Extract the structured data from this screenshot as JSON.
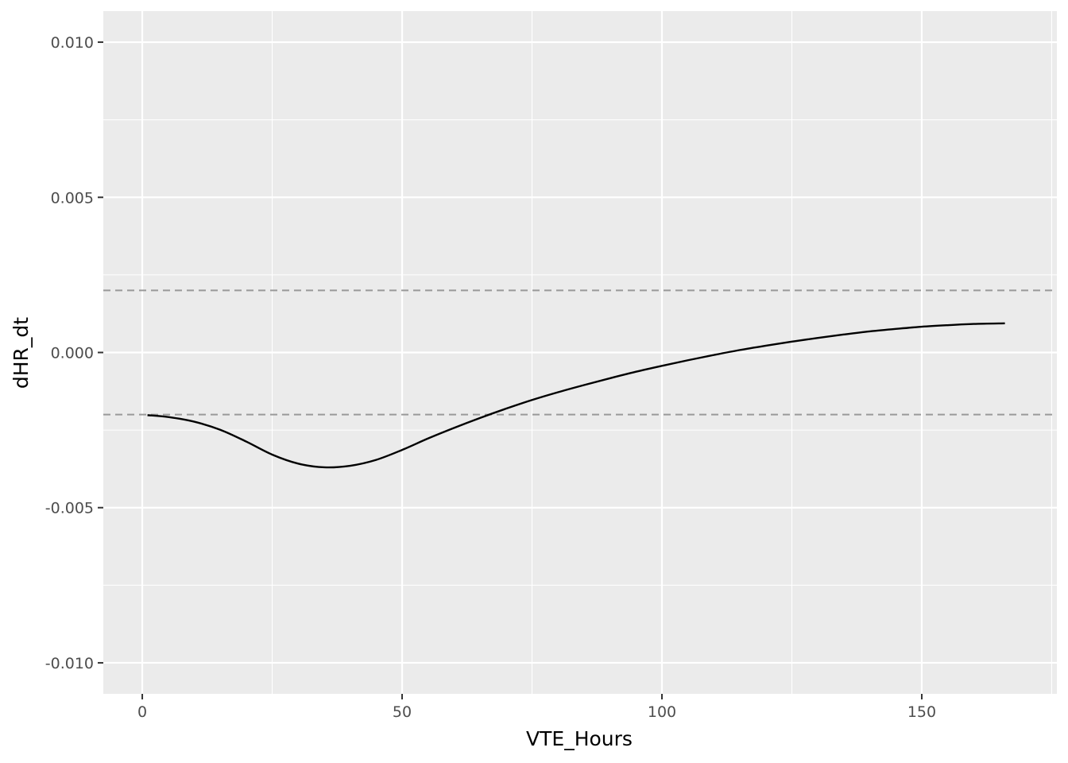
{
  "chart_data": {
    "type": "line",
    "title": "",
    "xlabel": "VTE_Hours",
    "ylabel": "dHR_dt",
    "xlim": [
      -7.5,
      176
    ],
    "ylim": [
      -0.011,
      0.011
    ],
    "x_ticks": [
      0,
      50,
      100,
      150
    ],
    "x_tick_labels": [
      "0",
      "50",
      "100",
      "150"
    ],
    "y_ticks": [
      -0.01,
      -0.005,
      0.0,
      0.005,
      0.01
    ],
    "y_tick_labels": [
      "-0.010",
      "-0.005",
      "0.000",
      "0.005",
      "0.010"
    ],
    "grid": true,
    "legend": "none",
    "reference_lines": [
      {
        "y": 0.002,
        "style": "dashed",
        "color": "#999999"
      },
      {
        "y": -0.002,
        "style": "dashed",
        "color": "#999999"
      }
    ],
    "series": [
      {
        "color": "#000000",
        "x": [
          1,
          5,
          10,
          15,
          20,
          25,
          30,
          35,
          40,
          45,
          50,
          55,
          60,
          65,
          70,
          75,
          80,
          85,
          90,
          95,
          100,
          105,
          110,
          115,
          120,
          125,
          130,
          135,
          140,
          145,
          150,
          155,
          160,
          166
        ],
        "y": [
          -0.00202,
          -0.00208,
          -0.00223,
          -0.00249,
          -0.00287,
          -0.00329,
          -0.00358,
          -0.0037,
          -0.00365,
          -0.00346,
          -0.00314,
          -0.00277,
          -0.00243,
          -0.00211,
          -0.00181,
          -0.00153,
          -0.00128,
          -0.00105,
          -0.00083,
          -0.00062,
          -0.00043,
          -0.00025,
          -8e-05,
          8e-05,
          0.00022,
          0.00035,
          0.00047,
          0.00058,
          0.00068,
          0.00076,
          0.00083,
          0.00088,
          0.00092,
          0.00094
        ]
      }
    ]
  }
}
